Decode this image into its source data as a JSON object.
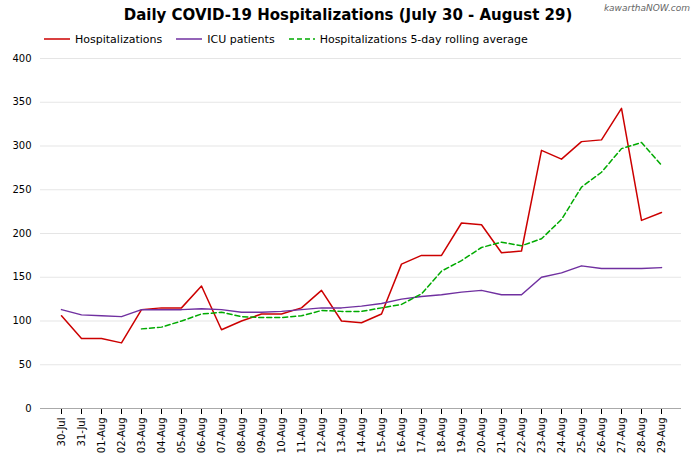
{
  "chart_data": {
    "type": "line",
    "title": "Daily COVID-19 Hospitalizations (July 30 - August 29)",
    "annotations": [
      "kawarthaNOW.com"
    ],
    "categories": [
      "30-Jul",
      "31-Jul",
      "01-Aug",
      "02-Aug",
      "03-Aug",
      "04-Aug",
      "05-Aug",
      "06-Aug",
      "07-Aug",
      "08-Aug",
      "09-Aug",
      "10-Aug",
      "11-Aug",
      "12-Aug",
      "13-Aug",
      "14-Aug",
      "15-Aug",
      "16-Aug",
      "17-Aug",
      "18-Aug",
      "19-Aug",
      "20-Aug",
      "21-Aug",
      "22-Aug",
      "23-Aug",
      "24-Aug",
      "25-Aug",
      "26-Aug",
      "27-Aug",
      "28-Aug",
      "29-Aug"
    ],
    "series": [
      {
        "name": "Hospitalizations",
        "color": "#cc0000",
        "line_style": "solid",
        "values": [
          106,
          80,
          80,
          75,
          113,
          115,
          115,
          140,
          90,
          100,
          108,
          108,
          115,
          135,
          100,
          98,
          108,
          165,
          175,
          175,
          212,
          210,
          178,
          180,
          295,
          285,
          305,
          307,
          343,
          215,
          224
        ]
      },
      {
        "name": "ICU patients",
        "color": "#7030a0",
        "line_style": "solid",
        "values": [
          113,
          107,
          106,
          105,
          113,
          113,
          113,
          114,
          113,
          110,
          110,
          111,
          113,
          115,
          115,
          117,
          120,
          125,
          128,
          130,
          133,
          135,
          130,
          130,
          150,
          155,
          163,
          160,
          160,
          160,
          161
        ]
      },
      {
        "name": "Hospitalizations 5-day rolling average",
        "color": "#00aa00",
        "line_style": "dashed",
        "values": [
          null,
          null,
          null,
          null,
          91,
          93,
          100,
          108,
          110,
          105,
          104,
          104,
          106,
          112,
          111,
          111,
          115,
          119,
          131,
          157,
          169,
          184,
          190,
          186,
          194,
          216,
          253,
          270,
          297,
          304,
          278
        ]
      }
    ],
    "ylim": [
      0,
      400
    ],
    "yticks": [
      0,
      50,
      100,
      150,
      200,
      250,
      300,
      350,
      400
    ],
    "grid": true,
    "legend": "upper left"
  }
}
